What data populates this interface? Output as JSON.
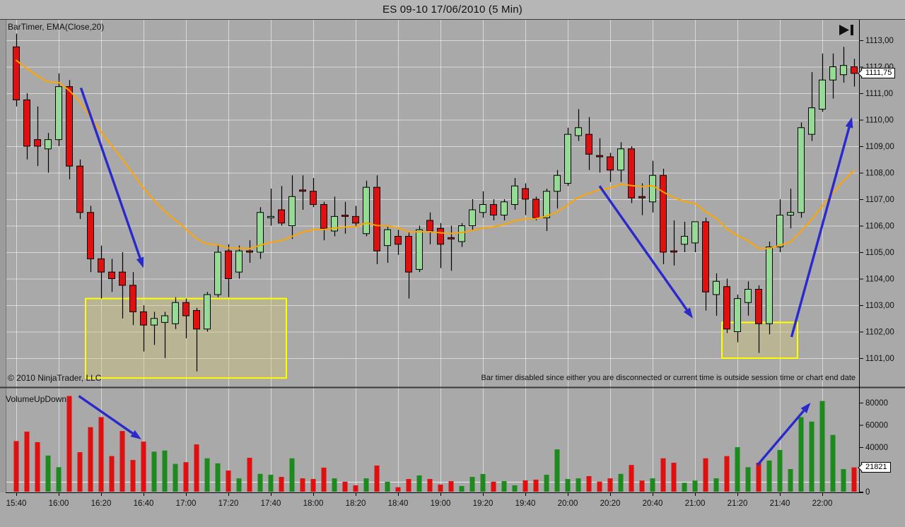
{
  "window": {
    "title": "ES 09-10  17/06/2010 (5 Min)"
  },
  "price_panel": {
    "indicator_label": "BarTimer, EMA(Close,20)",
    "copyright": "© 2010 NinjaTrader, LLC",
    "status_message": "Bar timer disabled since either you are disconnected or current time is outside session time or chart end date",
    "last_price_tag": "1111,75"
  },
  "volume_panel": {
    "label": "VolumeUpDown",
    "last_volume_tag": "21821"
  },
  "axes": {
    "price_tick_labels": [
      "1113,00",
      "1112,00",
      "1111,00",
      "1110,00",
      "1109,00",
      "1108,00",
      "1107,00",
      "1106,00",
      "1105,00",
      "1104,00",
      "1103,00",
      "1102,00",
      "1101,00"
    ],
    "volume_tick_labels": [
      "80000",
      "60000",
      "40000",
      "20000",
      "0"
    ],
    "time_tick_labels": [
      "15:40",
      "16:00",
      "16:20",
      "16:40",
      "17:00",
      "17:20",
      "17:40",
      "18:00",
      "18:20",
      "18:40",
      "19:00",
      "19:20",
      "19:40",
      "20:00",
      "20:20",
      "20:40",
      "21:00",
      "21:20",
      "21:40",
      "22:00"
    ]
  },
  "colors": {
    "background": "#a9a9a9",
    "titlebar": "#b6b6b6",
    "grid": "rgba(255,255,255,0.55)",
    "candle_up": "#95db95",
    "candle_down": "#e01010",
    "candle_outline": "#000000",
    "volume_up": "#1d8a1d",
    "volume_down": "#e01010",
    "ema": "#ffa500",
    "arrow": "#2929cc",
    "box_border": "#ffff00",
    "box_fill": "rgba(215,200,105,0.35)",
    "axis_text": "#111111"
  },
  "chart_data": {
    "type": "candlestick",
    "instrument": "ES 09-10",
    "date": "17/06/2010",
    "interval": "5 Min",
    "legend": [
      "BarTimer",
      "EMA(Close,20)",
      "VolumeUpDown"
    ],
    "price_axis": {
      "min": 1100.0,
      "max": 1113.75,
      "tick_step": 1.0,
      "ticks": [
        1113,
        1112,
        1111,
        1110,
        1109,
        1108,
        1107,
        1106,
        1105,
        1104,
        1103,
        1102,
        1101
      ]
    },
    "volume_axis": {
      "ticks": [
        80000,
        60000,
        40000,
        20000,
        0
      ],
      "last_value": 21821
    },
    "ema": {
      "period": 20,
      "seed": 1112.4
    },
    "last_price": 1111.75,
    "bar_columns": [
      "time",
      "open",
      "high",
      "low",
      "close",
      "volume"
    ],
    "bars": [
      [
        "15:40",
        1112.75,
        1113.25,
        1110.5,
        1110.75,
        45500
      ],
      [
        "15:45",
        1110.75,
        1111.0,
        1108.5,
        1109.0,
        54000
      ],
      [
        "15:50",
        1109.25,
        1110.5,
        1108.25,
        1109.0,
        44500
      ],
      [
        "15:55",
        1108.9,
        1109.5,
        1108.0,
        1109.25,
        32500
      ],
      [
        "16:00",
        1109.25,
        1111.75,
        1109.0,
        1111.25,
        22000
      ],
      [
        "16:05",
        1111.25,
        1111.5,
        1107.75,
        1108.25,
        86000
      ],
      [
        "16:10",
        1108.25,
        1108.5,
        1106.25,
        1106.5,
        35500
      ],
      [
        "16:15",
        1106.5,
        1106.75,
        1104.25,
        1104.75,
        58000
      ],
      [
        "16:20",
        1104.75,
        1105.25,
        1103.25,
        1104.25,
        67000
      ],
      [
        "16:25",
        1104.25,
        1104.75,
        1103.5,
        1104.0,
        32000
      ],
      [
        "16:30",
        1104.25,
        1105.0,
        1102.5,
        1103.75,
        54500
      ],
      [
        "16:35",
        1103.75,
        1104.25,
        1102.25,
        1102.75,
        28500
      ],
      [
        "16:40",
        1102.75,
        1103.0,
        1101.25,
        1102.25,
        45000
      ],
      [
        "16:45",
        1102.25,
        1102.75,
        1101.5,
        1102.5,
        36000
      ],
      [
        "16:50",
        1102.35,
        1102.75,
        1101.0,
        1102.6,
        37000
      ],
      [
        "16:55",
        1102.3,
        1103.3,
        1102.1,
        1103.1,
        25000
      ],
      [
        "17:00",
        1103.1,
        1103.25,
        1101.75,
        1102.6,
        26500
      ],
      [
        "17:05",
        1102.8,
        1102.9,
        1100.5,
        1102.1,
        42500
      ],
      [
        "17:10",
        1102.1,
        1103.5,
        1102.0,
        1103.4,
        30000
      ],
      [
        "17:15",
        1103.4,
        1105.3,
        1103.3,
        1105.0,
        25500
      ],
      [
        "17:20",
        1105.05,
        1105.3,
        1103.3,
        1104.0,
        19000
      ],
      [
        "17:25",
        1104.25,
        1105.25,
        1104.0,
        1105.05,
        12000
      ],
      [
        "17:30",
        1105.05,
        1105.45,
        1104.6,
        1105.0,
        30500
      ],
      [
        "17:35",
        1105.0,
        1106.7,
        1104.75,
        1106.5,
        16000
      ],
      [
        "17:40",
        1106.3,
        1107.4,
        1106.0,
        1106.35,
        15200
      ],
      [
        "17:45",
        1106.6,
        1107.5,
        1106.0,
        1106.1,
        13300
      ],
      [
        "17:50",
        1106.0,
        1107.9,
        1105.5,
        1107.1,
        30000
      ],
      [
        "17:55",
        1107.35,
        1107.9,
        1106.6,
        1107.3,
        12000
      ],
      [
        "18:00",
        1107.3,
        1107.8,
        1106.7,
        1106.8,
        11400
      ],
      [
        "18:05",
        1106.8,
        1106.9,
        1105.45,
        1105.9,
        21600
      ],
      [
        "18:10",
        1105.8,
        1107.1,
        1105.6,
        1106.35,
        12000
      ],
      [
        "18:15",
        1106.4,
        1106.9,
        1105.7,
        1106.35,
        8900
      ],
      [
        "18:20",
        1106.35,
        1106.75,
        1105.95,
        1106.1,
        5700
      ],
      [
        "18:25",
        1105.7,
        1107.7,
        1105.6,
        1107.45,
        12000
      ],
      [
        "18:30",
        1107.45,
        1107.9,
        1104.55,
        1105.05,
        23500
      ],
      [
        "18:35",
        1105.25,
        1106.0,
        1104.6,
        1105.85,
        8900
      ],
      [
        "18:40",
        1105.6,
        1105.85,
        1104.9,
        1105.3,
        4000
      ],
      [
        "18:45",
        1105.6,
        1105.75,
        1103.25,
        1104.25,
        11400
      ],
      [
        "18:50",
        1104.35,
        1106.0,
        1104.25,
        1105.85,
        14600
      ],
      [
        "18:55",
        1106.2,
        1106.5,
        1105.3,
        1105.8,
        11400
      ],
      [
        "19:00",
        1105.9,
        1106.1,
        1104.4,
        1105.3,
        6400
      ],
      [
        "19:05",
        1105.55,
        1106.0,
        1104.3,
        1105.5,
        9500
      ],
      [
        "19:10",
        1105.4,
        1106.1,
        1105.2,
        1106.0,
        5100
      ],
      [
        "19:15",
        1106.0,
        1107.0,
        1105.8,
        1106.6,
        13300
      ],
      [
        "19:20",
        1106.5,
        1107.3,
        1106.3,
        1106.8,
        15900
      ],
      [
        "19:25",
        1106.8,
        1107.0,
        1106.2,
        1106.4,
        8900
      ],
      [
        "19:30",
        1106.4,
        1107.0,
        1106.2,
        1106.9,
        9500
      ],
      [
        "19:35",
        1106.8,
        1107.8,
        1106.6,
        1107.5,
        5700
      ],
      [
        "19:40",
        1107.4,
        1107.6,
        1106.4,
        1107.0,
        10200
      ],
      [
        "19:45",
        1107.0,
        1107.1,
        1106.2,
        1106.3,
        10800
      ],
      [
        "19:50",
        1106.3,
        1107.4,
        1105.8,
        1107.3,
        15200
      ],
      [
        "19:55",
        1107.3,
        1108.1,
        1106.65,
        1107.9,
        38000
      ],
      [
        "20:00",
        1107.6,
        1109.7,
        1107.5,
        1109.45,
        11400
      ],
      [
        "20:05",
        1109.4,
        1110.4,
        1109.2,
        1109.7,
        12000
      ],
      [
        "20:10",
        1109.45,
        1110.1,
        1108.1,
        1108.7,
        14000
      ],
      [
        "20:15",
        1108.65,
        1109.3,
        1108.0,
        1108.6,
        9000
      ],
      [
        "20:20",
        1108.6,
        1108.75,
        1107.65,
        1108.1,
        12000
      ],
      [
        "20:25",
        1108.1,
        1109.15,
        1107.65,
        1108.9,
        16000
      ],
      [
        "20:30",
        1108.9,
        1109.0,
        1106.85,
        1107.05,
        24000
      ],
      [
        "20:35",
        1107.1,
        1107.6,
        1106.4,
        1107.05,
        10000
      ],
      [
        "20:40",
        1106.9,
        1108.45,
        1106.5,
        1107.9,
        12000
      ],
      [
        "20:45",
        1107.9,
        1108.15,
        1104.55,
        1105.0,
        30000
      ],
      [
        "20:50",
        1105.05,
        1106.2,
        1104.5,
        1105.0,
        26000
      ],
      [
        "20:55",
        1105.3,
        1106.15,
        1105.0,
        1105.6,
        8000
      ],
      [
        "21:00",
        1105.35,
        1106.15,
        1105.0,
        1106.15,
        10000
      ],
      [
        "21:05",
        1106.15,
        1106.3,
        1102.8,
        1103.5,
        30000
      ],
      [
        "21:10",
        1103.4,
        1104.2,
        1102.6,
        1103.9,
        12000
      ],
      [
        "21:15",
        1103.7,
        1104.0,
        1101.95,
        1102.1,
        32000
      ],
      [
        "21:20",
        1102.0,
        1103.4,
        1101.6,
        1103.25,
        40000
      ],
      [
        "21:25",
        1103.1,
        1103.9,
        1102.6,
        1103.6,
        22000
      ],
      [
        "21:30",
        1103.6,
        1103.75,
        1101.2,
        1102.3,
        26000
      ],
      [
        "21:35",
        1102.3,
        1105.4,
        1101.9,
        1105.2,
        28000
      ],
      [
        "21:40",
        1105.2,
        1107.0,
        1105.0,
        1106.4,
        37500
      ],
      [
        "21:45",
        1106.4,
        1107.4,
        1105.9,
        1106.5,
        20300
      ],
      [
        "21:50",
        1106.5,
        1109.9,
        1106.3,
        1109.7,
        67000
      ],
      [
        "21:55",
        1109.45,
        1111.8,
        1109.2,
        1110.45,
        63000
      ],
      [
        "22:00",
        1110.4,
        1112.5,
        1110.3,
        1111.5,
        81500
      ],
      [
        "22:05",
        1111.5,
        1112.5,
        1110.8,
        1112.0,
        51000
      ],
      [
        "22:10",
        1111.7,
        1112.75,
        1111.4,
        1112.05,
        20300
      ],
      [
        "22:15",
        1112.0,
        1112.3,
        1111.25,
        1111.75,
        21821
      ]
    ],
    "annotations": {
      "boxes": [
        {
          "panel": "price",
          "from_bar": 7,
          "to_bar": 25,
          "price_top": 1103.25,
          "price_bottom": 1100.25
        },
        {
          "panel": "price",
          "from_bar": 67,
          "to_bar": 73.2,
          "price_top": 1102.35,
          "price_bottom": 1101.0
        }
      ],
      "arrows": [
        {
          "panel": "price",
          "from": {
            "bar": 6.1,
            "price": 1111.2
          },
          "to": {
            "bar": 12.0,
            "price": 1104.4
          }
        },
        {
          "panel": "price",
          "from": {
            "bar": 55.0,
            "price": 1107.5
          },
          "to": {
            "bar": 63.8,
            "price": 1102.5
          }
        },
        {
          "panel": "price",
          "from": {
            "bar": 73.1,
            "price": 1101.8
          },
          "to": {
            "bar": 78.8,
            "price": 1110.1
          }
        },
        {
          "panel": "volume",
          "from": {
            "bar": 5.9,
            "vol": 86000
          },
          "to": {
            "bar": 11.8,
            "vol": 47000
          }
        },
        {
          "panel": "volume",
          "from": {
            "bar": 69.9,
            "vol": 24000
          },
          "to": {
            "bar": 74.9,
            "vol": 80000
          }
        }
      ]
    }
  }
}
